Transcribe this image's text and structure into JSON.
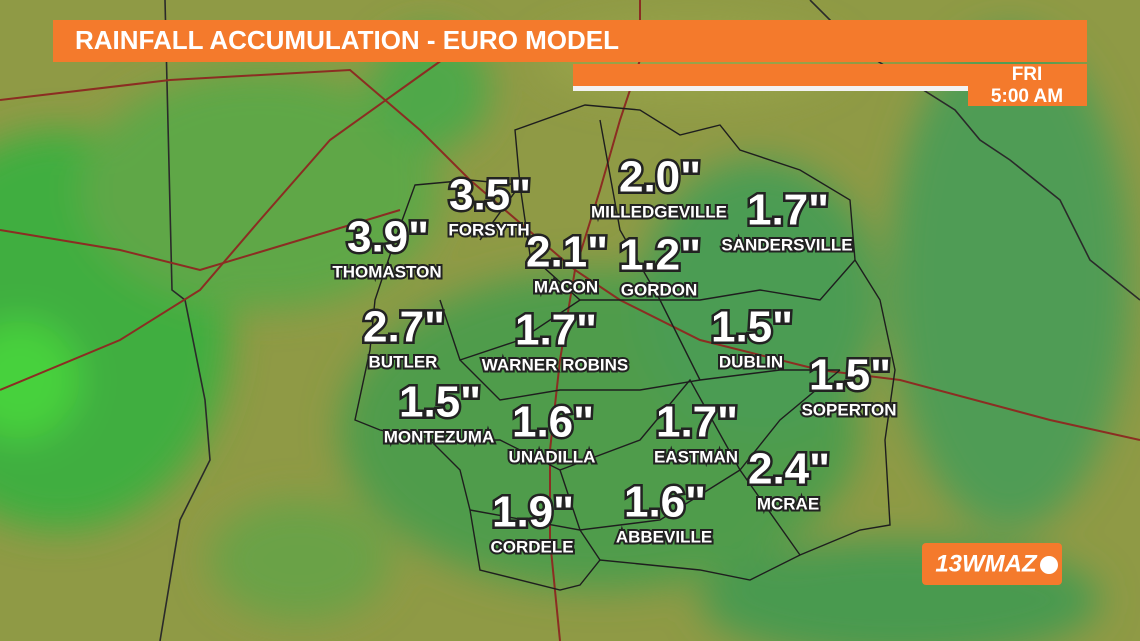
{
  "header": {
    "title": "RAINFALL ACCUMULATION - EURO MODEL",
    "day": "FRI",
    "time": "5:00 AM"
  },
  "cities": [
    {
      "name": "FORSYTH",
      "amount": "3.5\""
    },
    {
      "name": "THOMASTON",
      "amount": "3.9\""
    },
    {
      "name": "MILLEDGEVILLE",
      "amount": "2.0\""
    },
    {
      "name": "SANDERSVILLE",
      "amount": "1.7\""
    },
    {
      "name": "MACON",
      "amount": "2.1\""
    },
    {
      "name": "GORDON",
      "amount": "1.2\""
    },
    {
      "name": "BUTLER",
      "amount": "2.7\""
    },
    {
      "name": "WARNER ROBINS",
      "amount": "1.7\""
    },
    {
      "name": "DUBLIN",
      "amount": "1.5\""
    },
    {
      "name": "SOPERTON",
      "amount": "1.5\""
    },
    {
      "name": "MONTEZUMA",
      "amount": "1.5\""
    },
    {
      "name": "UNADILLA",
      "amount": "1.6\""
    },
    {
      "name": "EASTMAN",
      "amount": "1.7\""
    },
    {
      "name": "MCRAE",
      "amount": "2.4\""
    },
    {
      "name": "CORDELE",
      "amount": "1.9\""
    },
    {
      "name": "ABBEVILLE",
      "amount": "1.6\""
    }
  ],
  "logo": "13WMAZ"
}
